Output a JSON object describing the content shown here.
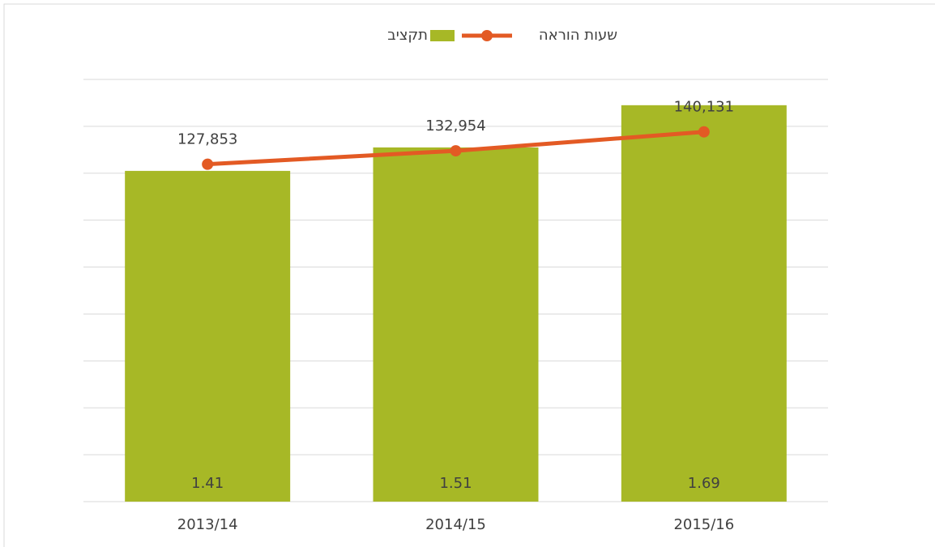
{
  "chart_data": {
    "type": "bar_line",
    "categories": [
      "2013/14",
      "2014/15",
      "2015/16"
    ],
    "series": [
      {
        "name": "תקציב",
        "type": "bar",
        "color": "#a7b826",
        "values": [
          1.41,
          1.51,
          1.69
        ]
      },
      {
        "name": "שעות הוראה",
        "type": "line",
        "axis": "y2",
        "color": "#e35a24",
        "values": [
          127853,
          132954,
          140131
        ],
        "value_labels": [
          "127,853",
          "132,954",
          "140,131"
        ]
      }
    ],
    "ylim": [
      0,
      1.8
    ],
    "yticks": [
      0,
      0.2,
      0.4,
      0.6,
      0.8,
      1.0,
      1.2,
      1.4,
      1.6,
      1.8
    ],
    "y2lim": [
      0,
      160000
    ],
    "grid": true,
    "legend": "top"
  }
}
